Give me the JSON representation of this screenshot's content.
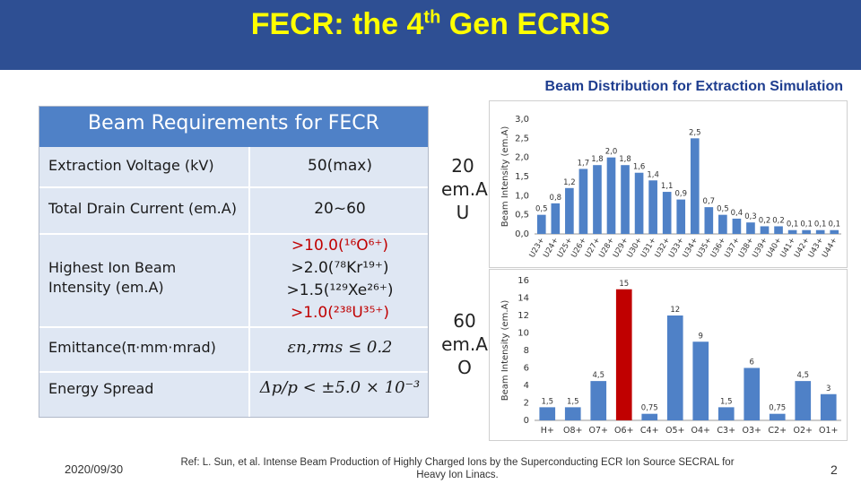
{
  "slide": {
    "title_pre": "FECR: the 4",
    "title_sup": "th",
    "title_post": " Gen ECRIS",
    "distribution_title": "Beam Distribution for Extraction Simulation"
  },
  "requirements": {
    "header": "Beam Requirements for FECR",
    "rows": [
      {
        "label": "Extraction Voltage (kV)",
        "value": "50(max)"
      },
      {
        "label": "Total Drain Current  (em.A)",
        "value": "20~60"
      },
      {
        "label": "Highest Ion Beam Intensity (em.A)",
        "values": [
          ">10.0(¹⁶O⁶⁺)",
          ">2.0(⁷⁸Kr¹⁹⁺)",
          ">1.5(¹²⁹Xe²⁶⁺)",
          ">1.0(²³⁸U³⁵⁺)"
        ]
      },
      {
        "label": "Emittance(π·mm·mrad)",
        "value": "εn,rms ≤ 0.2"
      },
      {
        "label": "Energy Spread",
        "value": "Δp/p < ±5.0 × 10⁻³"
      }
    ]
  },
  "side_labels": {
    "top": [
      "20",
      "em.A",
      "U"
    ],
    "bottom": [
      "60",
      "em.A",
      "O"
    ]
  },
  "chart_data": [
    {
      "type": "bar",
      "ylabel": "Beam Intensity (em.A)",
      "ylim": [
        0,
        3.0
      ],
      "yticks": [
        "0,0",
        "0,5",
        "1,0",
        "1,5",
        "2,0",
        "2,5",
        "3,0"
      ],
      "categories": [
        "U23+",
        "U24+",
        "U25+",
        "U26+",
        "U27+",
        "U28+",
        "U29+",
        "U30+",
        "U31+",
        "U32+",
        "U33+",
        "U34+",
        "U35+",
        "U36+",
        "U37+",
        "U38+",
        "U39+",
        "U40+",
        "U41+",
        "U42+",
        "U43+",
        "U44+"
      ],
      "values": [
        0.5,
        0.8,
        1.2,
        1.7,
        1.8,
        2.0,
        1.8,
        1.6,
        1.4,
        1.1,
        0.9,
        2.5,
        0.7,
        0.5,
        0.4,
        0.3,
        0.2,
        0.2,
        0.1,
        0.1,
        0.1,
        0.1
      ],
      "value_labels": [
        "0,5",
        "0,8",
        "1,2",
        "1,7",
        "1,8",
        "2,0",
        "1,8",
        "1,6",
        "1,4",
        "1,1",
        "0,9",
        "2,5",
        "0,7",
        "0,5",
        "0,4",
        "0,3",
        "0,2",
        "0,2",
        "0,1",
        "0,1",
        "0,1",
        "0,1"
      ],
      "highlight_color": "#c00000",
      "bar_color": "#4f81c7"
    },
    {
      "type": "bar",
      "ylabel": "Beam Intensity (em.A)",
      "ylim": [
        0,
        16
      ],
      "yticks": [
        "0",
        "2",
        "4",
        "6",
        "8",
        "10",
        "12",
        "14",
        "16"
      ],
      "categories": [
        "H+",
        "O8+",
        "O7+",
        "O6+",
        "C4+",
        "O5+",
        "O4+",
        "C3+",
        "O3+",
        "C2+",
        "O2+",
        "O1+"
      ],
      "values": [
        1.5,
        1.5,
        4.5,
        15,
        0.75,
        12,
        9,
        1.5,
        6,
        0.75,
        4.5,
        3
      ],
      "value_labels": [
        "1,5",
        "1,5",
        "4,5",
        "15",
        "0,75",
        "12",
        "9",
        "1,5",
        "6",
        "0,75",
        "4,5",
        "3"
      ],
      "highlight_index": 3,
      "highlight_color": "#c00000",
      "bar_color": "#4f81c7"
    }
  ],
  "footer": {
    "date": "2020/09/30",
    "reference": "Ref: L. Sun, et al. Intense Beam Production of Highly Charged Ions by the Superconducting ECR Ion Source SECRAL for Heavy Ion Linacs.",
    "page": "2"
  }
}
